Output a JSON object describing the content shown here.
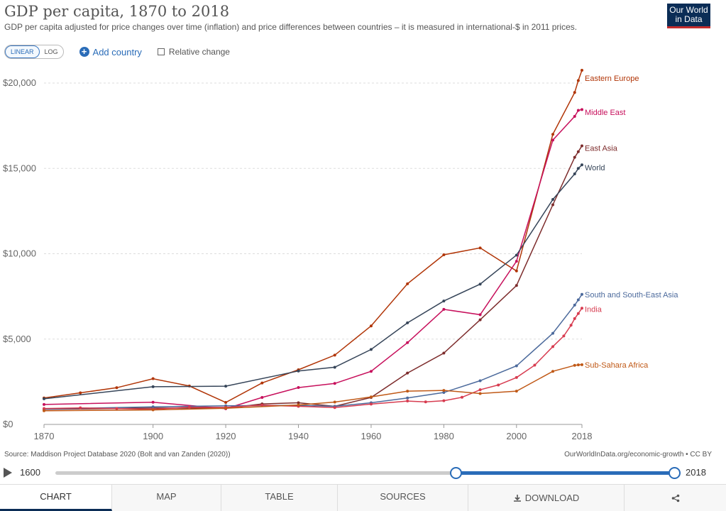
{
  "header": {
    "title": "GDP per capita, 1870 to 2018",
    "subtitle": "GDP per capita adjusted for price changes over time (inflation) and price differences between countries – it is measured in international-$ in 2011 prices.",
    "logo_line1": "Our World",
    "logo_line2": "in Data"
  },
  "controls": {
    "linear_label": "LINEAR",
    "log_label": "LOG",
    "add_country_label": "Add country",
    "relative_change_label": "Relative change"
  },
  "colors": {
    "Eastern Europe": "#b13507",
    "Middle East": "#c7105c",
    "East Asia": "#7d2c2c",
    "World": "#364559",
    "South and South-East Asia": "#4c6a9c",
    "India": "#d73c50",
    "Sub-Sahara Africa": "#c05917"
  },
  "chart_data": {
    "type": "line",
    "title": "GDP per capita, 1870 to 2018",
    "xlabel": "",
    "ylabel": "",
    "xlim": [
      1870,
      2018
    ],
    "ylim": [
      0,
      21000
    ],
    "x_ticks": [
      1870,
      1900,
      1920,
      1940,
      1960,
      1980,
      2000,
      2018
    ],
    "y_ticks": [
      0,
      5000,
      10000,
      15000,
      20000
    ],
    "y_tick_labels": [
      "$0",
      "$5,000",
      "$10,000",
      "$15,000",
      "$20,000"
    ],
    "grid": "horizontal dashed",
    "legend": "labels at line ends (right)",
    "series": [
      {
        "name": "Eastern Europe",
        "label_value": 20300,
        "points": [
          [
            1870,
            1550
          ],
          [
            1880,
            1850
          ],
          [
            1890,
            2150
          ],
          [
            1900,
            2680
          ],
          [
            1910,
            2250
          ],
          [
            1920,
            1290
          ],
          [
            1930,
            2430
          ],
          [
            1940,
            3200
          ],
          [
            1950,
            4060
          ],
          [
            1960,
            5770
          ],
          [
            1970,
            8240
          ],
          [
            1980,
            9940
          ],
          [
            1990,
            10340
          ],
          [
            2000,
            8990
          ],
          [
            2010,
            17000
          ],
          [
            2016,
            19450
          ],
          [
            2017,
            20150
          ],
          [
            2018,
            20750
          ]
        ]
      },
      {
        "name": "Middle East",
        "label_value": 18300,
        "points": [
          [
            1870,
            1170
          ],
          [
            1900,
            1300
          ],
          [
            1920,
            920
          ],
          [
            1930,
            1580
          ],
          [
            1940,
            2160
          ],
          [
            1950,
            2400
          ],
          [
            1960,
            3110
          ],
          [
            1970,
            4790
          ],
          [
            1980,
            6740
          ],
          [
            1990,
            6430
          ],
          [
            2000,
            9560
          ],
          [
            2010,
            16660
          ],
          [
            2016,
            18050
          ],
          [
            2017,
            18400
          ],
          [
            2018,
            18450
          ]
        ]
      },
      {
        "name": "East Asia",
        "label_value": 16200,
        "points": [
          [
            1870,
            880
          ],
          [
            1900,
            960
          ],
          [
            1920,
            950
          ],
          [
            1930,
            1200
          ],
          [
            1940,
            1270
          ],
          [
            1950,
            1060
          ],
          [
            1960,
            1580
          ],
          [
            1970,
            3010
          ],
          [
            1980,
            4180
          ],
          [
            1990,
            6130
          ],
          [
            2000,
            8140
          ],
          [
            2010,
            12870
          ],
          [
            2016,
            15650
          ],
          [
            2017,
            15980
          ],
          [
            2018,
            16320
          ]
        ]
      },
      {
        "name": "World",
        "label_value": 15050,
        "points": [
          [
            1870,
            1500
          ],
          [
            1900,
            2210
          ],
          [
            1920,
            2240
          ],
          [
            1940,
            3130
          ],
          [
            1950,
            3350
          ],
          [
            1960,
            4390
          ],
          [
            1970,
            5950
          ],
          [
            1980,
            7230
          ],
          [
            1990,
            8220
          ],
          [
            2000,
            9920
          ],
          [
            2010,
            13180
          ],
          [
            2016,
            14680
          ],
          [
            2017,
            15000
          ],
          [
            2018,
            15210
          ]
        ]
      },
      {
        "name": "South and South-East Asia",
        "label_value": 7600,
        "points": [
          [
            1870,
            900
          ],
          [
            1900,
            1030
          ],
          [
            1920,
            1090
          ],
          [
            1940,
            1120
          ],
          [
            1950,
            1060
          ],
          [
            1960,
            1270
          ],
          [
            1970,
            1550
          ],
          [
            1980,
            1870
          ],
          [
            1990,
            2560
          ],
          [
            2000,
            3430
          ],
          [
            2010,
            5340
          ],
          [
            2016,
            6990
          ],
          [
            2017,
            7300
          ],
          [
            2018,
            7620
          ]
        ]
      },
      {
        "name": "India",
        "label_value": 6750,
        "points": [
          [
            1870,
            930
          ],
          [
            1880,
            970
          ],
          [
            1890,
            930
          ],
          [
            1900,
            890
          ],
          [
            1910,
            1010
          ],
          [
            1920,
            1000
          ],
          [
            1930,
            1130
          ],
          [
            1940,
            1060
          ],
          [
            1950,
            990
          ],
          [
            1960,
            1190
          ],
          [
            1970,
            1370
          ],
          [
            1975,
            1320
          ],
          [
            1980,
            1390
          ],
          [
            1985,
            1590
          ],
          [
            1990,
            2030
          ],
          [
            1995,
            2310
          ],
          [
            2000,
            2750
          ],
          [
            2005,
            3470
          ],
          [
            2010,
            4560
          ],
          [
            2013,
            5180
          ],
          [
            2015,
            5810
          ],
          [
            2016,
            6200
          ],
          [
            2017,
            6500
          ],
          [
            2018,
            6810
          ]
        ]
      },
      {
        "name": "Sub-Sahara Africa",
        "label_value": 3500,
        "points": [
          [
            1870,
            800
          ],
          [
            1900,
            850
          ],
          [
            1920,
            950
          ],
          [
            1940,
            1140
          ],
          [
            1950,
            1310
          ],
          [
            1960,
            1610
          ],
          [
            1970,
            1950
          ],
          [
            1980,
            1990
          ],
          [
            1990,
            1810
          ],
          [
            2000,
            1950
          ],
          [
            2010,
            3110
          ],
          [
            2016,
            3460
          ],
          [
            2017,
            3490
          ],
          [
            2018,
            3500
          ]
        ]
      }
    ]
  },
  "footer": {
    "source": "Source: Maddison Project Database 2020 (Bolt and van Zanden (2020))",
    "right": "OurWorldInData.org/economic-growth • CC BY"
  },
  "timeline": {
    "start": "1600",
    "end": "2018",
    "range_start_fraction": 0.647,
    "range_end_fraction": 1.0
  },
  "tabs": [
    {
      "label": "CHART"
    },
    {
      "label": "MAP"
    },
    {
      "label": "TABLE"
    },
    {
      "label": "SOURCES"
    },
    {
      "label": "DOWNLOAD"
    },
    {
      "label": ""
    }
  ]
}
